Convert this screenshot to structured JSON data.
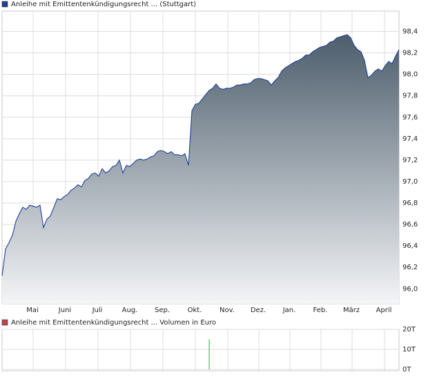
{
  "chart_data": [
    {
      "type": "area",
      "series": [
        {
          "name": "Anleihe mit Emittentenkündigungsrecht ... (Stuttgart)",
          "color": "#1f3f95",
          "values": [
            96.12,
            96.37,
            96.43,
            96.5,
            96.63,
            96.7,
            96.76,
            96.74,
            96.78,
            96.77,
            96.76,
            96.78,
            96.57,
            96.65,
            96.68,
            96.76,
            96.84,
            96.83,
            96.86,
            96.88,
            96.92,
            96.94,
            96.97,
            96.95,
            97.01,
            97.03,
            97.07,
            97.08,
            97.05,
            97.12,
            97.08,
            97.1,
            97.14,
            97.15,
            97.2,
            97.08,
            97.15,
            97.14,
            97.17,
            97.2,
            97.21,
            97.2,
            97.21,
            97.23,
            97.24,
            97.28,
            97.29,
            97.28,
            97.26,
            97.28,
            97.25,
            97.25,
            97.24,
            97.26,
            97.15,
            97.66,
            97.72,
            97.73,
            97.77,
            97.81,
            97.85,
            97.87,
            97.91,
            97.87,
            97.86,
            97.87,
            97.87,
            97.88,
            97.9,
            97.9,
            97.91,
            97.91,
            97.92,
            97.95,
            97.96,
            97.96,
            97.95,
            97.94,
            97.9,
            97.94,
            97.97,
            98.03,
            98.06,
            98.08,
            98.1,
            98.12,
            98.13,
            98.15,
            98.18,
            98.18,
            98.21,
            98.23,
            98.25,
            98.26,
            98.27,
            98.3,
            98.31,
            98.34,
            98.35,
            98.36,
            98.37,
            98.34,
            98.27,
            98.23,
            98.21,
            98.13,
            97.97,
            97.99,
            98.03,
            98.05,
            98.03,
            98.08,
            98.12,
            98.1,
            98.17,
            98.23
          ]
        }
      ],
      "xlim": [
        0,
        115
      ],
      "xticks": [
        {
          "value": 9,
          "label": "Mai"
        },
        {
          "value": 18.4,
          "label": "Juni"
        },
        {
          "value": 27.8,
          "label": "Juli"
        },
        {
          "value": 37.2,
          "label": "Aug."
        },
        {
          "value": 46.6,
          "label": "Sep."
        },
        {
          "value": 56,
          "label": "Okt."
        },
        {
          "value": 65.4,
          "label": "Nov."
        },
        {
          "value": 74.4,
          "label": "Dez."
        },
        {
          "value": 83.4,
          "label": "Jan."
        },
        {
          "value": 92.4,
          "label": "Feb."
        },
        {
          "value": 101.4,
          "label": "März"
        },
        {
          "value": 110.8,
          "label": "April"
        }
      ],
      "ylim": [
        95.86,
        98.59
      ],
      "yticks": [
        {
          "value": 96.0,
          "label": "96,0"
        },
        {
          "value": 96.2,
          "label": "96,2"
        },
        {
          "value": 96.4,
          "label": "96,4"
        },
        {
          "value": 96.6,
          "label": "96,6"
        },
        {
          "value": 96.8,
          "label": "96,8"
        },
        {
          "value": 97.0,
          "label": "97,0"
        },
        {
          "value": 97.2,
          "label": "97,2"
        },
        {
          "value": 97.4,
          "label": "97,4"
        },
        {
          "value": 97.6,
          "label": "97,6"
        },
        {
          "value": 97.8,
          "label": "97,8"
        },
        {
          "value": 98.0,
          "label": "98,0"
        },
        {
          "value": 98.2,
          "label": "98,2"
        },
        {
          "value": 98.4,
          "label": "98,4"
        }
      ],
      "grid": true
    },
    {
      "type": "bar",
      "series": [
        {
          "name": "Anleihe mit Emittentenkündigungsrecht ... Volumen in Euro",
          "color": "#c2414f",
          "x": [
            60
          ],
          "values": [
            15
          ],
          "bar_color": "#33cc33"
        }
      ],
      "xlim": [
        0,
        115
      ],
      "ylim": [
        -0.7,
        20
      ],
      "yticks": [
        {
          "value": 0,
          "label": "0T"
        },
        {
          "value": 10,
          "label": "10T"
        },
        {
          "value": 20,
          "label": "20T"
        }
      ],
      "grid": true
    }
  ]
}
